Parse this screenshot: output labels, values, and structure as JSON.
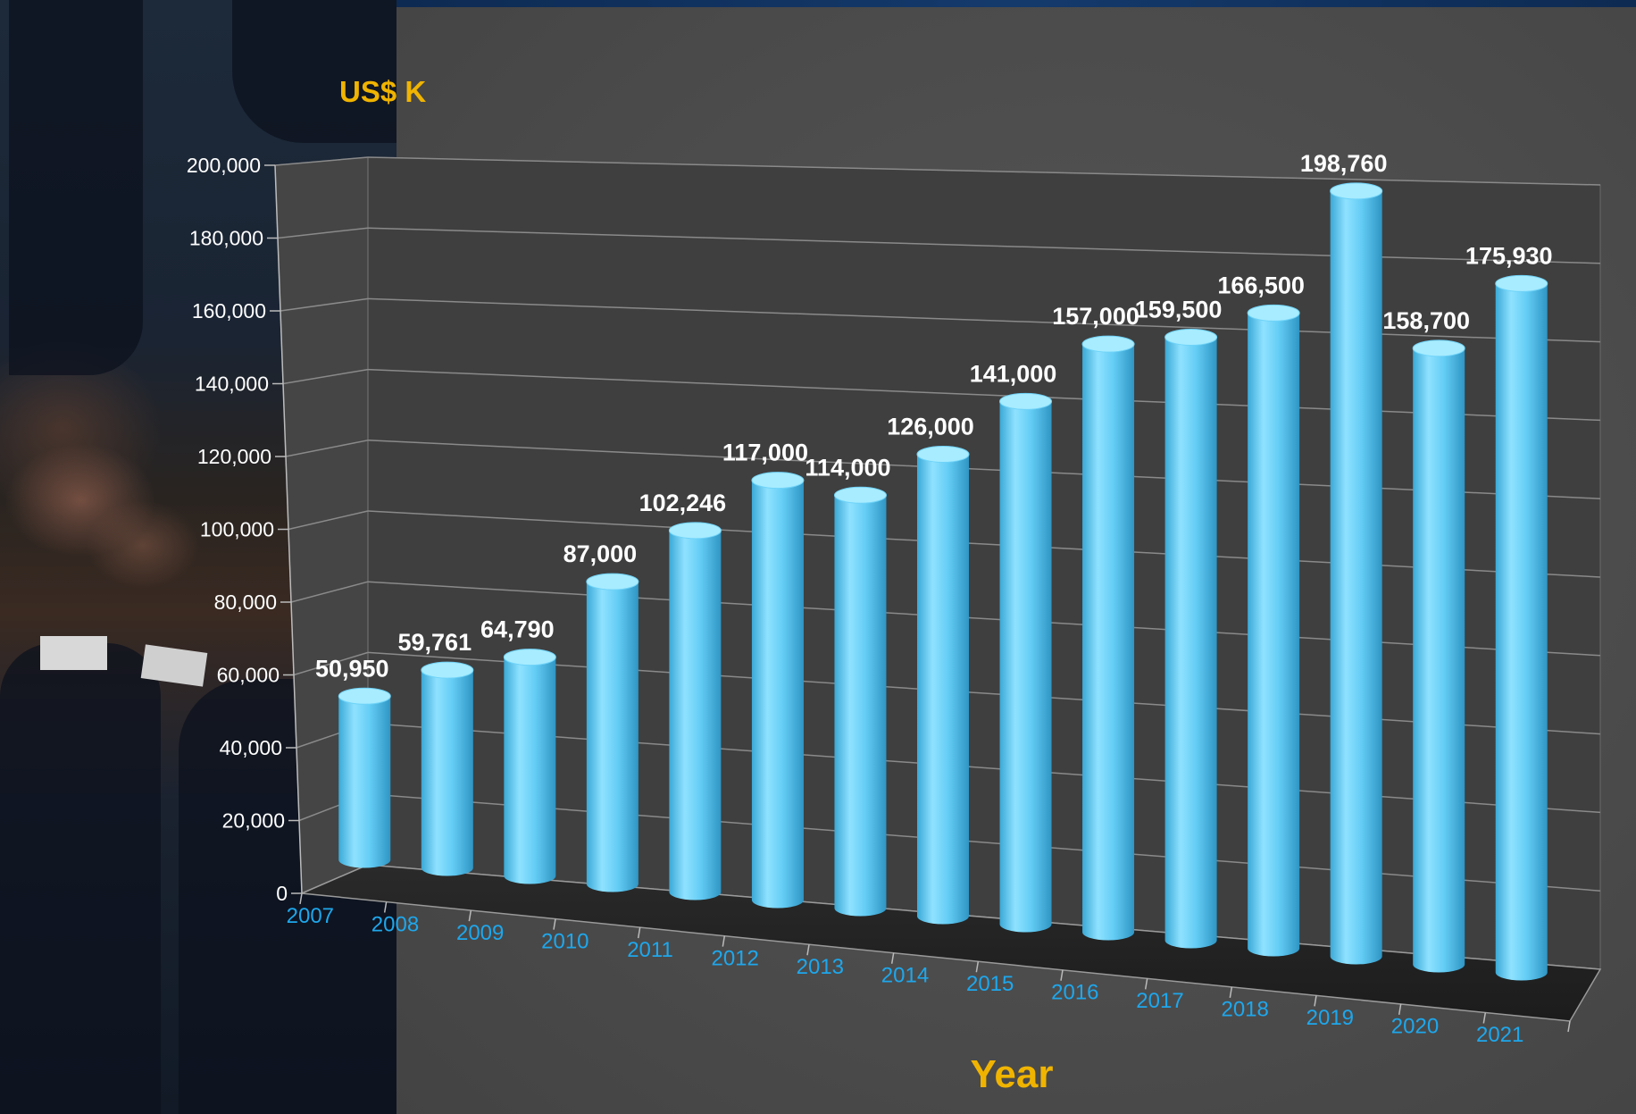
{
  "chart_data": {
    "type": "bar",
    "style": "3d-cylinder",
    "title": "",
    "ylabel": "US$ K",
    "xlabel": "Year",
    "ylim": [
      0,
      200000
    ],
    "yticks": [
      "0",
      "20,000",
      "40,000",
      "60,000",
      "80,000",
      "100,000",
      "120,000",
      "140,000",
      "160,000",
      "180,000",
      "200,000"
    ],
    "categories": [
      "2007",
      "2008",
      "2009",
      "2010",
      "2011",
      "2012",
      "2013",
      "2014",
      "2015",
      "2016",
      "2017",
      "2018",
      "2019",
      "2020",
      "2021"
    ],
    "values": [
      50950,
      59761,
      64790,
      87000,
      102246,
      117000,
      114000,
      126000,
      141000,
      157000,
      159500,
      166500,
      198760,
      158700,
      175930
    ],
    "value_labels": [
      "50,950",
      "59,761",
      "64,790",
      "87,000",
      "102,246",
      "117,000",
      "114,000",
      "126,000",
      "141,000",
      "157,000",
      "159,500",
      "166,500",
      "198,760",
      "158,700",
      "175,930"
    ],
    "grid": true,
    "legend": "none",
    "colors": {
      "bar": "#5cc8f2",
      "axis_title": "#f0b400",
      "x_tick": "#1ea7ec",
      "y_tick": "#ffffff",
      "data_label": "#ffffff",
      "background": "#4a4a4a"
    }
  }
}
